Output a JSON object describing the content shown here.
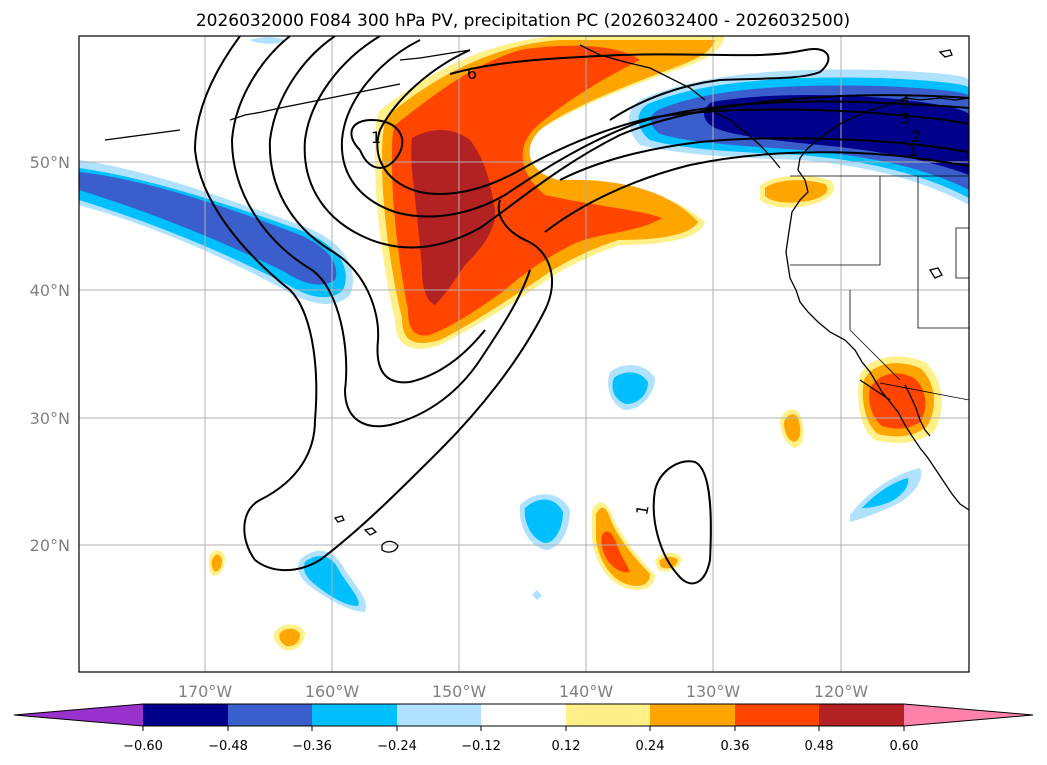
{
  "title": "2026032000 F084 300 hPa PV, precipitation PC (2026032400 - 2026032500)",
  "lat_labels": [
    "50°N",
    "40°N",
    "30°N",
    "20°N"
  ],
  "lon_labels": [
    "170°W",
    "160°W",
    "150°W",
    "140°W",
    "130°W",
    "120°W"
  ],
  "contour_labels": [
    "6",
    "1",
    "4",
    "3",
    "2",
    "1",
    "1"
  ],
  "colorbar": {
    "ticks": [
      "−0.60",
      "−0.48",
      "−0.36",
      "−0.24",
      "−0.12",
      "0.12",
      "0.24",
      "0.36",
      "0.48",
      "0.60"
    ],
    "colors": {
      "under": "#9932cc",
      "bin1": "#00008b",
      "bin2": "#3a5fcd",
      "bin3": "#00bfff",
      "bin4": "#b0e2ff",
      "bin5": "#ffffff",
      "bin6": "#fff08a",
      "bin7": "#ffa500",
      "bin8": "#ff4500",
      "bin9": "#b22222",
      "over": "#ff82ab"
    }
  }
}
